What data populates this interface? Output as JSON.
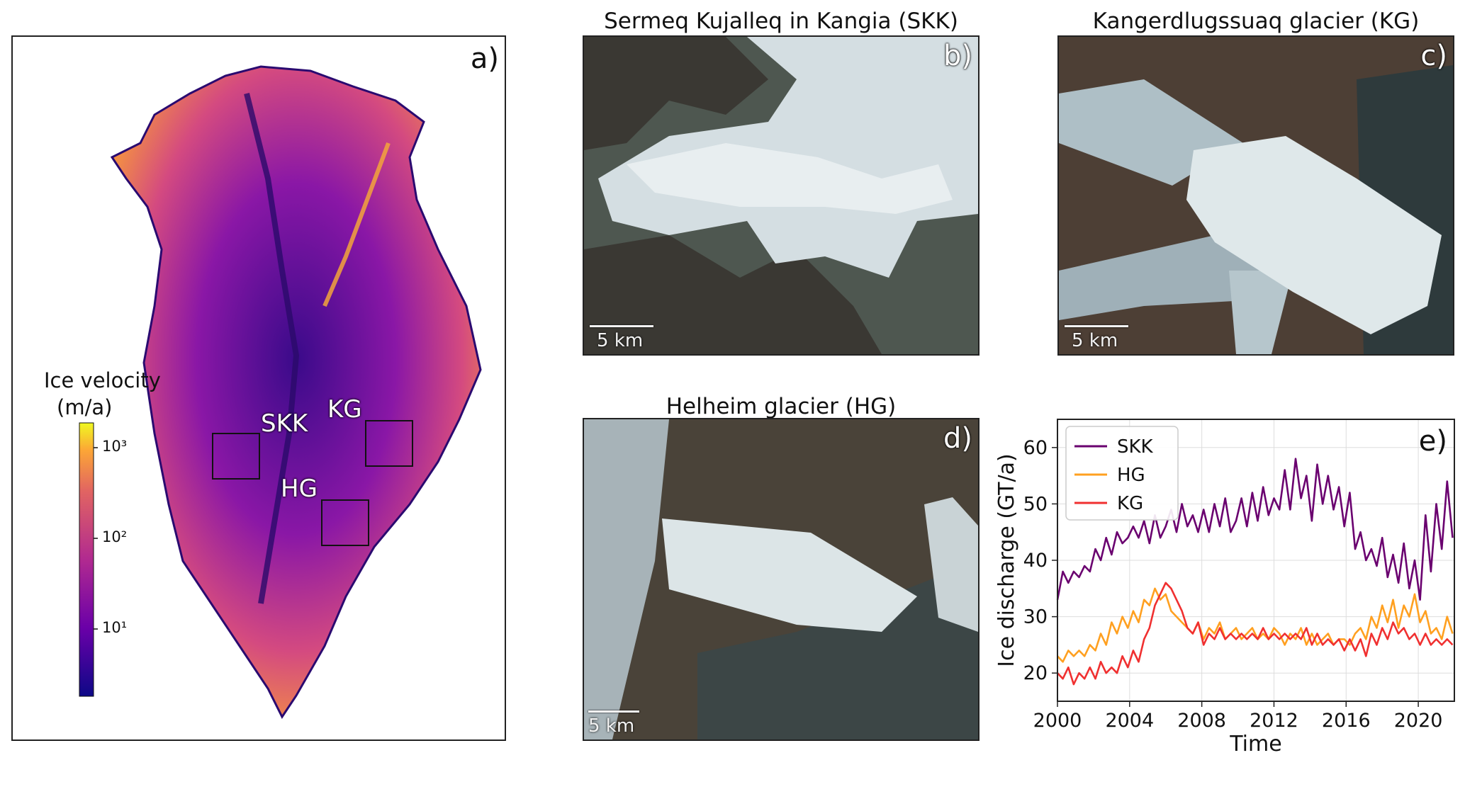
{
  "panel_a": {
    "label": "a)",
    "colorbar": {
      "title_line1": "Ice velocity",
      "title_line2": "(m/a)",
      "ticks": [
        "10³",
        "10²",
        "10¹"
      ]
    },
    "glacier_labels": {
      "skk": "SKK",
      "kg": "KG",
      "hg": "HG"
    }
  },
  "panel_b": {
    "title": "Sermeq Kujalleq in Kangia (SKK)",
    "label": "b)",
    "scale": "5 km"
  },
  "panel_c": {
    "title": "Kangerdlugssuaq glacier (KG)",
    "label": "c)",
    "scale": "5 km"
  },
  "panel_d": {
    "title": "Helheim glacier (HG)",
    "label": "d)",
    "scale": "5 km"
  },
  "chart_data": {
    "type": "line",
    "label": "e)",
    "xlabel": "Time",
    "ylabel": "Ice discharge (GT/a)",
    "xlim": [
      2000,
      2022
    ],
    "ylim": [
      15,
      65
    ],
    "xticks": [
      2000,
      2004,
      2008,
      2012,
      2016,
      2020
    ],
    "yticks": [
      20,
      30,
      40,
      50,
      60
    ],
    "grid": true,
    "legend_position": "top-left",
    "series": [
      {
        "name": "SKK",
        "color": "#6a006f",
        "x": [
          2000,
          2000.3,
          2000.6,
          2000.9,
          2001.2,
          2001.5,
          2001.8,
          2002.1,
          2002.4,
          2002.7,
          2003,
          2003.3,
          2003.6,
          2003.9,
          2004.2,
          2004.5,
          2004.8,
          2005.1,
          2005.4,
          2005.7,
          2006,
          2006.3,
          2006.6,
          2006.9,
          2007.2,
          2007.5,
          2007.8,
          2008.1,
          2008.4,
          2008.7,
          2009,
          2009.3,
          2009.6,
          2009.9,
          2010.2,
          2010.5,
          2010.8,
          2011.1,
          2011.4,
          2011.7,
          2012,
          2012.3,
          2012.6,
          2012.9,
          2013.2,
          2013.5,
          2013.8,
          2014.1,
          2014.4,
          2014.7,
          2015,
          2015.3,
          2015.6,
          2015.9,
          2016.2,
          2016.5,
          2016.8,
          2017.1,
          2017.4,
          2017.7,
          2018,
          2018.3,
          2018.6,
          2018.9,
          2019.2,
          2019.5,
          2019.8,
          2020.1,
          2020.4,
          2020.7,
          2021,
          2021.3,
          2021.6,
          2021.9
        ],
        "y": [
          33,
          38,
          36,
          38,
          37,
          39,
          38,
          42,
          40,
          44,
          41,
          45,
          43,
          44,
          46,
          44,
          47,
          43,
          48,
          44,
          46,
          49,
          45,
          50,
          46,
          48,
          45,
          49,
          45,
          50,
          46,
          51,
          45,
          47,
          51,
          46,
          52,
          47,
          53,
          48,
          51,
          49,
          56,
          49,
          58,
          51,
          55,
          47,
          57,
          50,
          55,
          49,
          53,
          46,
          52,
          42,
          45,
          40,
          42,
          39,
          44,
          37,
          41,
          36,
          43,
          35,
          40,
          33,
          48,
          38,
          50,
          42,
          54,
          44
        ]
      },
      {
        "name": "HG",
        "color": "#ffa020",
        "x": [
          2000,
          2000.3,
          2000.6,
          2000.9,
          2001.2,
          2001.5,
          2001.8,
          2002.1,
          2002.4,
          2002.7,
          2003,
          2003.3,
          2003.6,
          2003.9,
          2004.2,
          2004.5,
          2004.8,
          2005.1,
          2005.4,
          2005.7,
          2006,
          2006.3,
          2006.6,
          2006.9,
          2007.2,
          2007.5,
          2007.8,
          2008.1,
          2008.4,
          2008.7,
          2009,
          2009.3,
          2009.6,
          2009.9,
          2010.2,
          2010.5,
          2010.8,
          2011.1,
          2011.4,
          2011.7,
          2012,
          2012.3,
          2012.6,
          2012.9,
          2013.2,
          2013.5,
          2013.8,
          2014.1,
          2014.4,
          2014.7,
          2015,
          2015.3,
          2015.6,
          2015.9,
          2016.2,
          2016.5,
          2016.8,
          2017.1,
          2017.4,
          2017.7,
          2018,
          2018.3,
          2018.6,
          2018.9,
          2019.2,
          2019.5,
          2019.8,
          2020.1,
          2020.4,
          2020.7,
          2021,
          2021.3,
          2021.6,
          2021.9
        ],
        "y": [
          23,
          22,
          24,
          23,
          24,
          23,
          25,
          24,
          27,
          25,
          29,
          27,
          30,
          28,
          31,
          29,
          33,
          32,
          35,
          33,
          34,
          31,
          30,
          29,
          28,
          27,
          29,
          26,
          28,
          27,
          29,
          26,
          27,
          28,
          26,
          27,
          28,
          26,
          27,
          26,
          28,
          27,
          25,
          27,
          26,
          28,
          25,
          27,
          25,
          26,
          27,
          25,
          26,
          26,
          25,
          27,
          28,
          26,
          30,
          28,
          32,
          29,
          33,
          28,
          32,
          30,
          34,
          29,
          31,
          27,
          28,
          26,
          30,
          27
        ]
      },
      {
        "name": "KG",
        "color": "#f03030",
        "x": [
          2000,
          2000.3,
          2000.6,
          2000.9,
          2001.2,
          2001.5,
          2001.8,
          2002.1,
          2002.4,
          2002.7,
          2003,
          2003.3,
          2003.6,
          2003.9,
          2004.2,
          2004.5,
          2004.8,
          2005.1,
          2005.4,
          2005.7,
          2006,
          2006.3,
          2006.6,
          2006.9,
          2007.2,
          2007.5,
          2007.8,
          2008.1,
          2008.4,
          2008.7,
          2009,
          2009.3,
          2009.6,
          2009.9,
          2010.2,
          2010.5,
          2010.8,
          2011.1,
          2011.4,
          2011.7,
          2012,
          2012.3,
          2012.6,
          2012.9,
          2013.2,
          2013.5,
          2013.8,
          2014.1,
          2014.4,
          2014.7,
          2015,
          2015.3,
          2015.6,
          2015.9,
          2016.2,
          2016.5,
          2016.8,
          2017.1,
          2017.4,
          2017.7,
          2018,
          2018.3,
          2018.6,
          2018.9,
          2019.2,
          2019.5,
          2019.8,
          2020.1,
          2020.4,
          2020.7,
          2021,
          2021.3,
          2021.6,
          2021.9
        ],
        "y": [
          20,
          19,
          21,
          18,
          20,
          19,
          21,
          19,
          22,
          20,
          21,
          20,
          23,
          21,
          24,
          22,
          26,
          28,
          32,
          34,
          36,
          35,
          33,
          31,
          28,
          27,
          29,
          25,
          27,
          26,
          28,
          26,
          27,
          26,
          27,
          26,
          27,
          26,
          28,
          26,
          27,
          26,
          27,
          26,
          27,
          26,
          28,
          25,
          27,
          25,
          26,
          25,
          26,
          24,
          26,
          24,
          26,
          23,
          27,
          25,
          28,
          26,
          29,
          27,
          28,
          26,
          27,
          25,
          27,
          25,
          26,
          25,
          26,
          25
        ]
      }
    ]
  }
}
